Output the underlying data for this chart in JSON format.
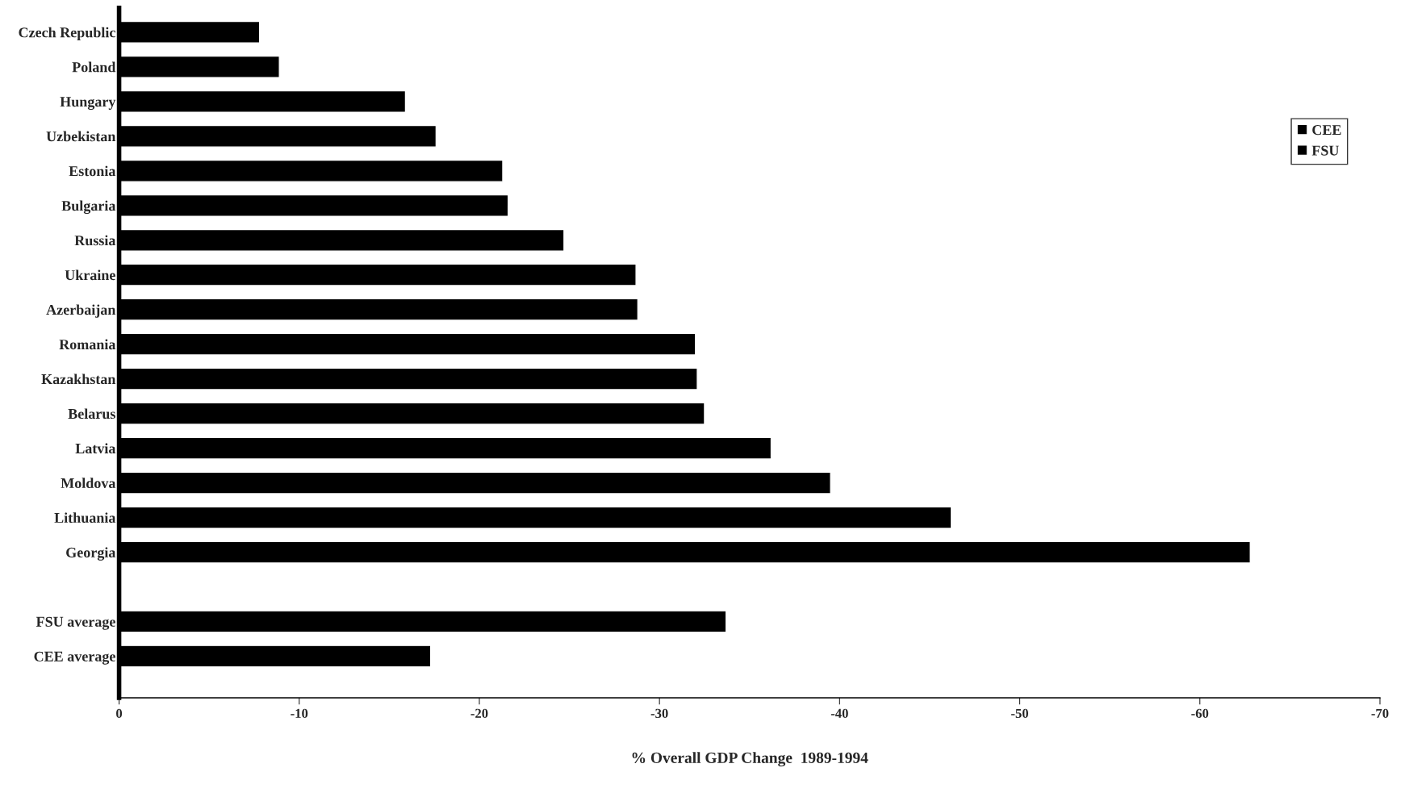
{
  "chart_data": {
    "type": "bar",
    "orientation": "horizontal",
    "xlabel": "% Overall GDP Change  1989-1994",
    "categories": [
      "Czech Republic",
      "Poland",
      "Hungary",
      "Uzbekistan",
      "Estonia",
      "Bulgaria",
      "Russia",
      "Ukraine",
      "Azerbaijan",
      "Romania",
      "Kazakhstan",
      "Belarus",
      "Latvia",
      "Moldova",
      "Lithuania",
      "Georgia",
      null,
      "FSU average",
      "CEE average"
    ],
    "series": [
      {
        "name": "CEE",
        "color": "#000000",
        "values": [
          -7.8,
          -8.9,
          -15.9,
          null,
          null,
          -21.6,
          null,
          null,
          null,
          -32.0,
          null,
          null,
          null,
          null,
          null,
          null,
          null,
          null,
          -17.3
        ]
      },
      {
        "name": "FSU",
        "color": "#000000",
        "values": [
          null,
          null,
          null,
          -17.6,
          -21.3,
          null,
          -24.7,
          -28.7,
          -28.8,
          null,
          -32.1,
          -32.5,
          -36.2,
          -39.5,
          -46.2,
          -62.8,
          null,
          -33.7,
          null
        ]
      }
    ],
    "xlim": [
      0,
      -70
    ],
    "xticks": [
      0,
      -10,
      -20,
      -30,
      -40,
      -50,
      -60,
      -70
    ],
    "grid": false,
    "legend": "top right"
  }
}
